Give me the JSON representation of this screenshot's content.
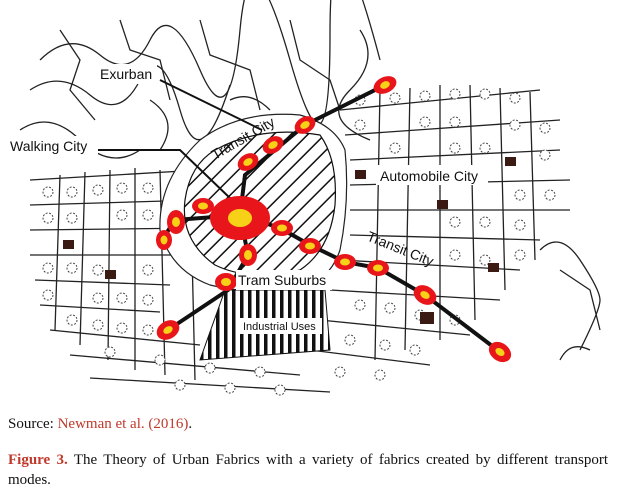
{
  "diagram": {
    "labels": {
      "exurban": "Exurban",
      "walking_city": "Walking City",
      "transit_city_top": "Transit City",
      "automobile_city": "Automobile City",
      "transit_city_right": "Transit City",
      "tram_suburbs": "Tram Suburbs",
      "industrial_uses": "Industrial Uses"
    },
    "colors": {
      "node_fill": "#e8161b",
      "node_core": "#f7d117",
      "rail_line": "#111111",
      "street": "#222222",
      "block": "#3a1a12"
    }
  },
  "source": {
    "prefix": "Source: ",
    "link_text": "Newman et al. (2016)",
    "suffix": "."
  },
  "caption": {
    "figure_label": "Figure 3.",
    "text": " The Theory of Urban Fabrics with a variety of fabrics created by different transport modes."
  }
}
